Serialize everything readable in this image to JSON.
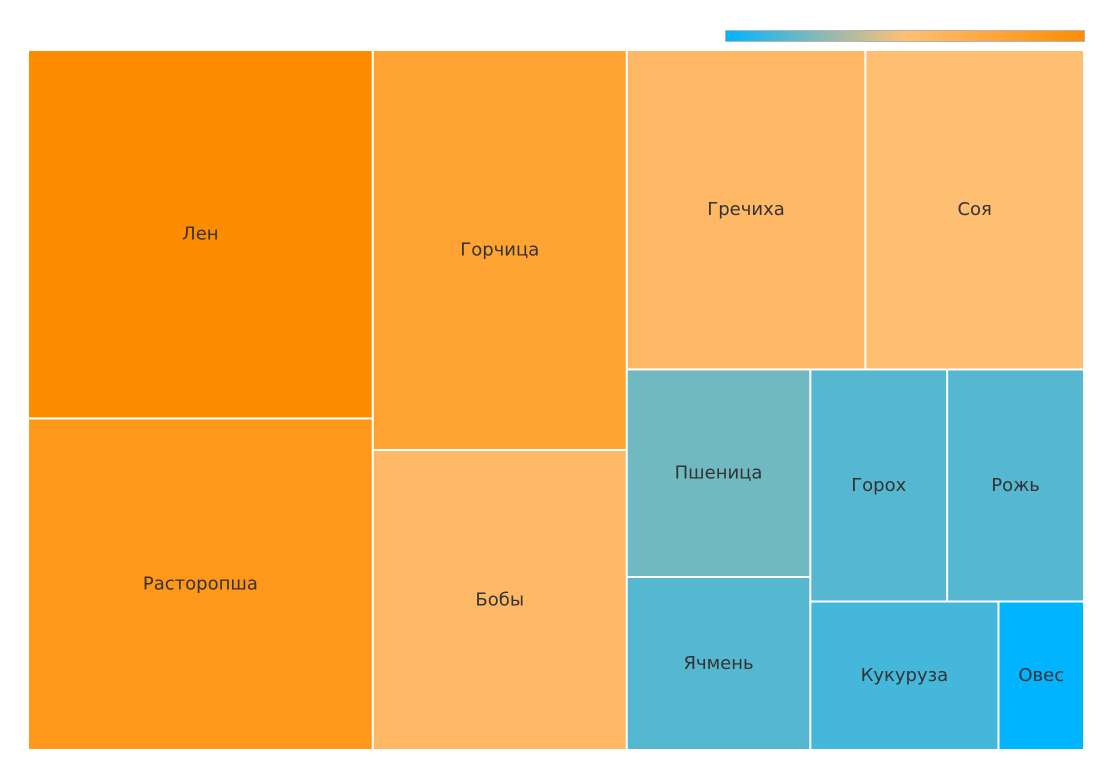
{
  "chart_data": {
    "type": "treemap",
    "title": "",
    "value_range": [
      1,
      10
    ],
    "color_scale": [
      "#00b4ff",
      "#ffbf73",
      "#ff8c00"
    ],
    "legend_placement": "top-right",
    "items": [
      {
        "name": "Лен",
        "value": 10
      },
      {
        "name": "Расторопша",
        "value": 9
      },
      {
        "name": "Горчица",
        "value": 8
      },
      {
        "name": "Бобы",
        "value": 6
      },
      {
        "name": "Гречиха",
        "value": 6
      },
      {
        "name": "Соя",
        "value": 5.5
      },
      {
        "name": "Пшеница",
        "value": 3
      },
      {
        "name": "Ячмень",
        "value": 2.5
      },
      {
        "name": "Горох",
        "value": 2.5
      },
      {
        "name": "Рожь",
        "value": 2.5
      },
      {
        "name": "Кукуруза",
        "value": 2.2
      },
      {
        "name": "Овес",
        "value": 1
      }
    ]
  }
}
